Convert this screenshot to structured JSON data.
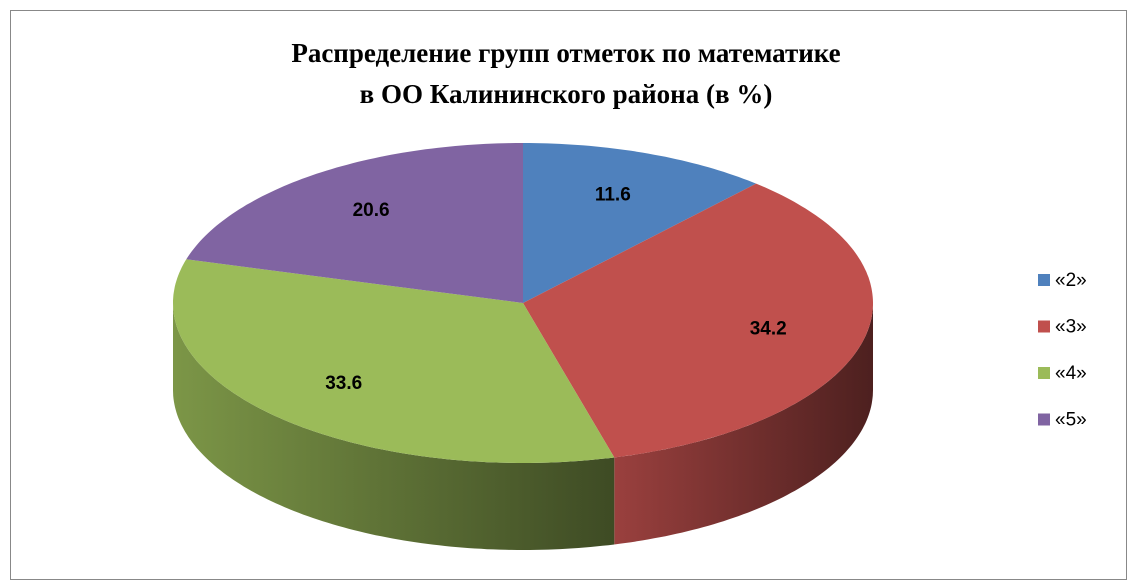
{
  "chart_data": {
    "type": "pie",
    "title": [
      "Распределение групп отметок по математике",
      "в ОО Калининского района (в %)"
    ],
    "categories": [
      "«2»",
      "«3»",
      "«4»",
      "«5»"
    ],
    "values": [
      11.6,
      34.2,
      33.6,
      20.6
    ],
    "colors": [
      "#4f81bd",
      "#c0504d",
      "#9bbb59",
      "#8064a2"
    ],
    "legend": "right"
  }
}
